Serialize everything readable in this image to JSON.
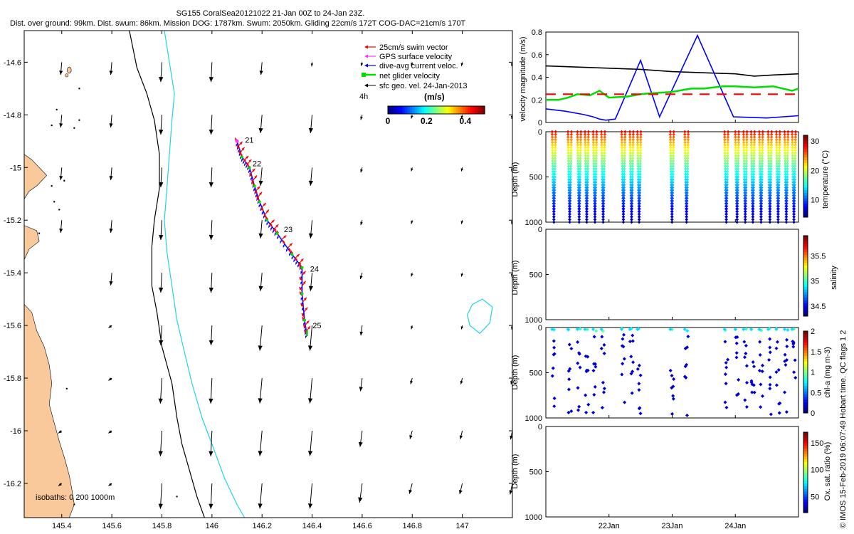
{
  "titles": {
    "line1": "SG155 CoralSea20121022 21-Jan 00Z to 24-Jan 23Z.",
    "line2": "Dist. over ground: 99km. Dist. swum: 86km. Mission DOG: 1787km. Swum: 2050km. Gliding 22cm/s 172T COG-DAC=21cm/s 170T",
    "credit": "© IMOS 15-Feb-2019 06:07:49 Hobart time. QC flags 1  2"
  },
  "colors": {
    "land": "#f9c99b",
    "isobath_200": "#000000",
    "isobath_1000": "#22d3e6",
    "swim_vector": "#ff0000",
    "gps_velocity": "#ff33ff",
    "dac": "#0000ff",
    "net_velocity": "#00dd00",
    "geo_velocity": "#000000"
  },
  "chart_data": [
    {
      "type": "map",
      "xlim": [
        145.25,
        147.2
      ],
      "ylim": [
        -16.33,
        -14.48
      ],
      "x_ticks": [
        "145.4",
        "145.6",
        "145.8",
        "146",
        "146.2",
        "146.4",
        "146.6",
        "146.8",
        "147"
      ],
      "x_tick_values": [
        145.4,
        145.6,
        145.8,
        146.0,
        146.2,
        146.4,
        146.6,
        146.8,
        147.0
      ],
      "y_ticks": [
        "-14.6",
        "-14.8",
        "-15",
        "-15.2",
        "-15.4",
        "-15.6",
        "-15.8",
        "-16",
        "-16.2"
      ],
      "y_tick_values": [
        -14.6,
        -14.8,
        -15.0,
        -15.2,
        -15.4,
        -15.6,
        -15.8,
        -16.0,
        -16.2
      ],
      "isobaths_label": "isobaths: 0  200  1000m",
      "legend": {
        "items": [
          {
            "label": "25cm/s swim vector",
            "color": "#ff0000"
          },
          {
            "label": "GPS surface velocity",
            "color": "#ff33ff"
          },
          {
            "label": "dive-avg current veloc.",
            "color": "#0000ff"
          },
          {
            "label": "net glider velocity",
            "color": "#00dd00"
          },
          {
            "label": "sfc geo. vel. 24-Jan-2013",
            "color": "#000000"
          }
        ],
        "segment_label": "4h",
        "colorbar_title": "(m/s)",
        "colorbar_ticks": [
          "0",
          "0.2",
          "0.4"
        ],
        "colorbar_tick_values": [
          0,
          0.2,
          0.4
        ],
        "colorbar_range": [
          0,
          0.5
        ]
      },
      "track": [
        {
          "lon": 146.1,
          "lat": -14.9
        },
        {
          "lon": 146.12,
          "lat": -14.96
        },
        {
          "lon": 146.15,
          "lat": -15.0
        },
        {
          "lon": 146.17,
          "lat": -15.07
        },
        {
          "lon": 146.19,
          "lat": -15.13
        },
        {
          "lon": 146.22,
          "lat": -15.2
        },
        {
          "lon": 146.26,
          "lat": -15.25
        },
        {
          "lon": 146.32,
          "lat": -15.33
        },
        {
          "lon": 146.36,
          "lat": -15.38
        },
        {
          "lon": 146.36,
          "lat": -15.48
        },
        {
          "lon": 146.37,
          "lat": -15.58
        },
        {
          "lon": 146.38,
          "lat": -15.64
        }
      ],
      "day_labels": [
        {
          "text": "21",
          "lon": 146.115,
          "lat": -14.895
        },
        {
          "text": "22",
          "lon": 146.145,
          "lat": -14.985
        },
        {
          "text": "23",
          "lon": 146.27,
          "lat": -15.235
        },
        {
          "text": "24",
          "lon": 146.375,
          "lat": -15.385
        },
        {
          "text": "25",
          "lon": 146.385,
          "lat": -15.6
        }
      ]
    },
    {
      "type": "line",
      "ylabel": "velocity magnitude (m/s)",
      "ylim": [
        0,
        0.8
      ],
      "y_ticks": [
        "0",
        "0.2",
        "0.4",
        "0.6",
        "0.8"
      ],
      "y_tick_values": [
        0,
        0.2,
        0.4,
        0.6,
        0.8
      ],
      "x_range_days": [
        21.0,
        25.0
      ],
      "series": [
        {
          "color": "#000000",
          "x": [
            21.0,
            21.5,
            22.0,
            22.5,
            23.0,
            23.5,
            24.0,
            24.3,
            24.6,
            25.0
          ],
          "values": [
            0.5,
            0.49,
            0.48,
            0.47,
            0.45,
            0.44,
            0.43,
            0.41,
            0.42,
            0.43
          ]
        },
        {
          "color": "#0000ff",
          "x": [
            21.0,
            21.3,
            21.6,
            21.75,
            21.85,
            21.95,
            22.1,
            22.5,
            22.8,
            23.4,
            23.97,
            24.5,
            25.0
          ],
          "values": [
            0.12,
            0.1,
            0.07,
            0.05,
            0.03,
            0.02,
            0.03,
            0.55,
            0.05,
            0.77,
            0.05,
            0.04,
            0.06
          ]
        },
        {
          "color": "#00dd00",
          "x": [
            21.0,
            21.2,
            21.35,
            21.5,
            21.7,
            21.85,
            22.0,
            22.3,
            22.5,
            22.7,
            23.0,
            23.3,
            23.5,
            23.8,
            24.0,
            24.3,
            24.6,
            24.9,
            25.0
          ],
          "values": [
            0.2,
            0.2,
            0.22,
            0.25,
            0.24,
            0.28,
            0.22,
            0.23,
            0.25,
            0.26,
            0.27,
            0.3,
            0.3,
            0.32,
            0.32,
            0.31,
            0.32,
            0.28,
            0.3
          ]
        },
        {
          "color": "#ff0000",
          "x": [
            21.0,
            21.3,
            21.5,
            22.0,
            22.5,
            23.0,
            23.5,
            24.0,
            24.5,
            25.0
          ],
          "values": [
            0.25,
            0.25,
            0.25,
            0.25,
            0.25,
            0.25,
            0.25,
            0.25,
            0.25,
            0.25
          ]
        }
      ]
    },
    {
      "type": "scatter",
      "ylabel": "Depth (m)",
      "colorbar_label": "temperature (°C)",
      "colorbar_ticks": [
        "10",
        "20",
        "30"
      ],
      "colorbar_tick_values": [
        10,
        20,
        30
      ],
      "colorbar_range": [
        4,
        32
      ],
      "y_ticks": [
        "0",
        "500",
        "1000"
      ],
      "y_tick_values": [
        0,
        500,
        1000
      ],
      "ylim": [
        1000,
        0
      ],
      "dives": [
        21.1,
        21.35,
        21.5,
        21.62,
        21.75,
        21.88,
        22.2,
        22.33,
        22.45,
        22.97,
        23.2,
        23.83,
        24.0,
        24.13,
        24.25,
        24.38,
        24.52,
        24.65,
        24.78,
        24.9
      ]
    },
    {
      "type": "scatter",
      "ylabel": "Depth (m)",
      "colorbar_label": "salinity",
      "colorbar_ticks": [
        "34.5",
        "35",
        "35.5"
      ],
      "colorbar_tick_values": [
        34.5,
        35,
        35.5
      ],
      "colorbar_range": [
        34.3,
        35.9
      ],
      "y_ticks": [
        "0",
        "500",
        "1000"
      ],
      "y_tick_values": [
        0,
        500,
        1000
      ],
      "ylim": [
        1000,
        0
      ]
    },
    {
      "type": "scatter",
      "ylabel": "Depth (m)",
      "colorbar_label": "chl-a (mg m-3)",
      "colorbar_ticks": [
        "0",
        "0.5",
        "1",
        "1.5",
        "2"
      ],
      "colorbar_tick_values": [
        0,
        0.5,
        1,
        1.5,
        2
      ],
      "colorbar_range": [
        0,
        2
      ],
      "y_ticks": [
        "0",
        "500",
        "1000"
      ],
      "y_tick_values": [
        0,
        500,
        1000
      ],
      "ylim": [
        1000,
        0
      ]
    },
    {
      "type": "scatter",
      "ylabel": "Depth (m)",
      "colorbar_label": "Ox. sat. ratio (%)",
      "colorbar_ticks": [
        "50",
        "100",
        "150"
      ],
      "colorbar_tick_values": [
        50,
        100,
        150
      ],
      "colorbar_range": [
        20,
        170
      ],
      "y_ticks": [
        "0",
        "500",
        "1000"
      ],
      "y_tick_values": [
        0,
        500,
        1000
      ],
      "ylim": [
        1000,
        0
      ],
      "x_ticks": [
        "22Jan",
        "23Jan",
        "24Jan"
      ],
      "x_tick_values": [
        22.0,
        23.0,
        24.0
      ]
    }
  ]
}
